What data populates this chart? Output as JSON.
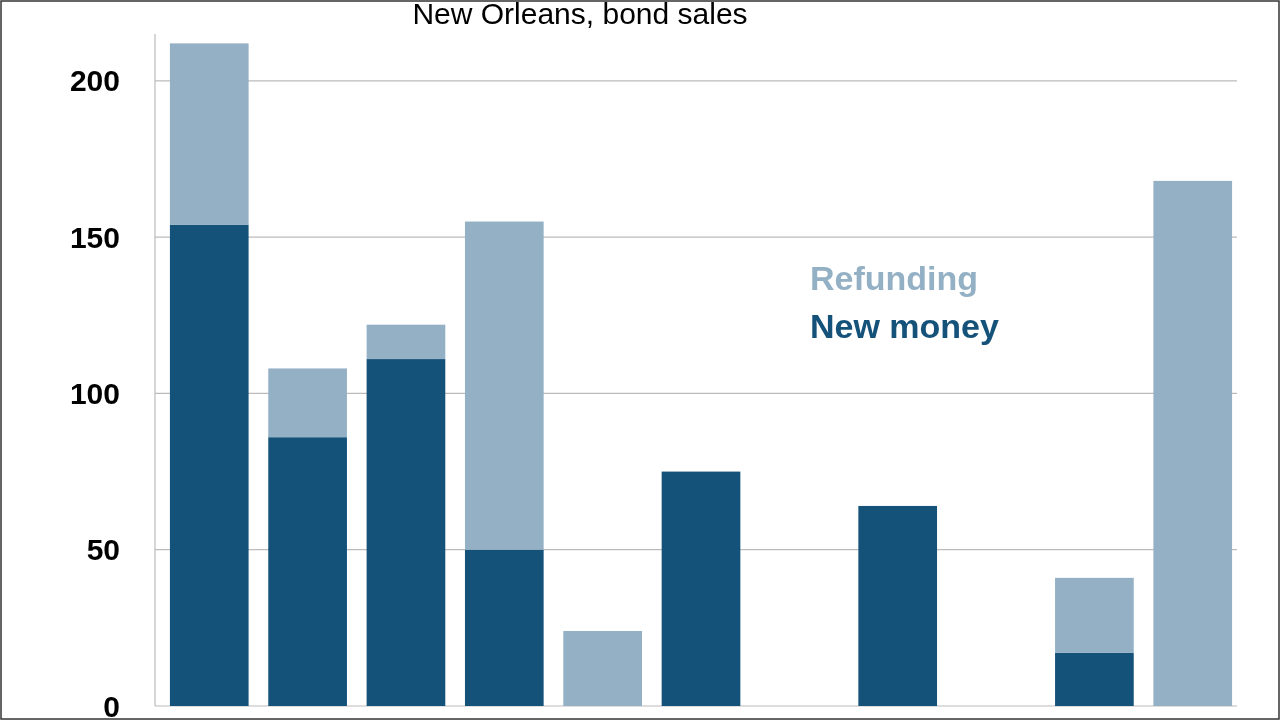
{
  "chart_data": {
    "type": "bar",
    "title": "New Orleans, bond sales",
    "stacked": true,
    "categories": [
      null,
      null,
      null,
      null,
      null,
      null,
      null,
      null,
      null,
      null,
      null
    ],
    "series": [
      {
        "name": "New money",
        "color": "#15527a",
        "values": [
          154,
          86,
          111,
          50,
          0,
          75,
          0,
          64,
          0,
          17,
          0
        ]
      },
      {
        "name": "Refunding",
        "color": "#93b0c5",
        "values": [
          58,
          22,
          11,
          105,
          24,
          0,
          0,
          0,
          0,
          24,
          168
        ]
      }
    ],
    "ylim": [
      0,
      215
    ],
    "yticks": [
      0,
      50,
      100,
      150,
      200
    ],
    "grid": "y",
    "legend": "right"
  }
}
